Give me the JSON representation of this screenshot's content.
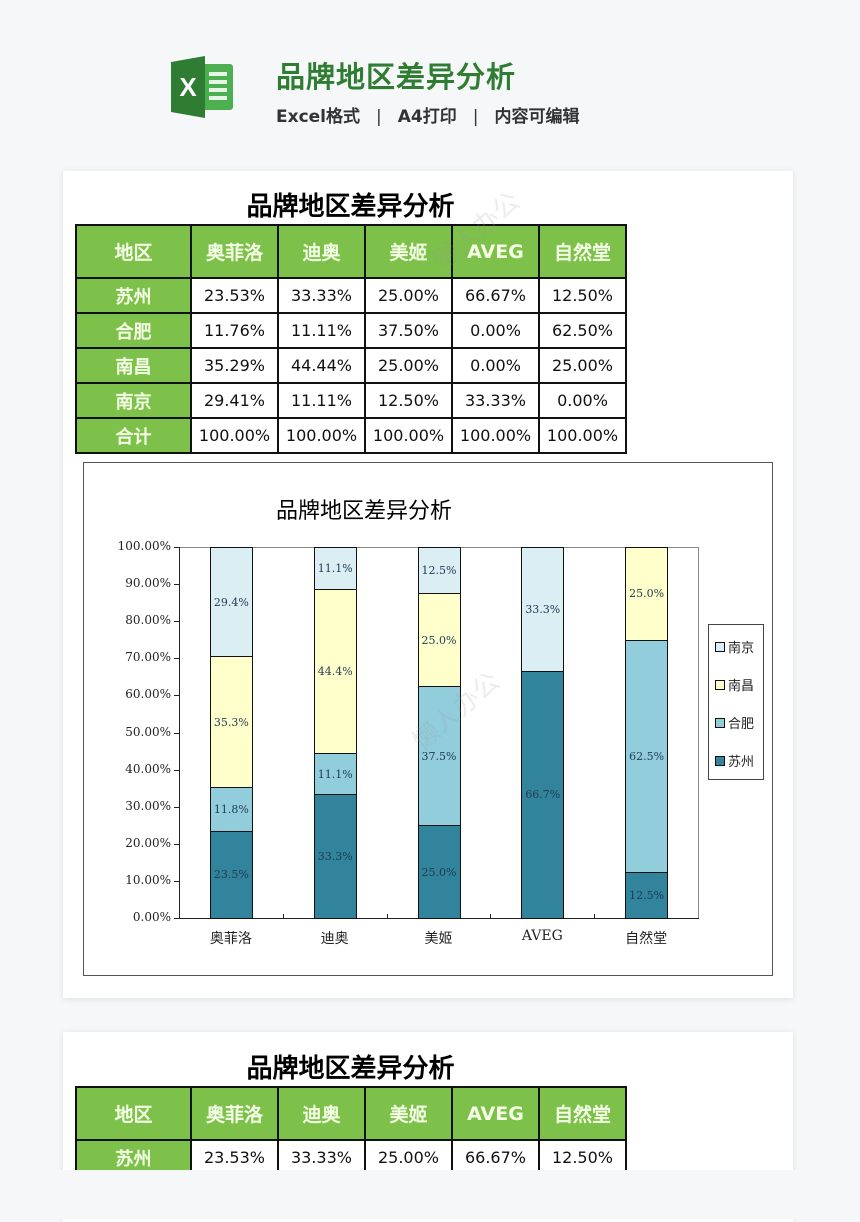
{
  "header": {
    "title": "品牌地区差异分析",
    "tags": [
      "Excel格式",
      "A4打印",
      "内容可编辑"
    ],
    "separator": "|",
    "icon": "excel-icon",
    "brand_color": "#2e7d32"
  },
  "sheet": {
    "title": "品牌地区差异分析",
    "columns": [
      "地区",
      "奥菲洛",
      "迪奥",
      "美姬",
      "AVEG",
      "自然堂"
    ],
    "rows": [
      {
        "region": "苏州",
        "values": [
          "23.53%",
          "33.33%",
          "25.00%",
          "66.67%",
          "12.50%"
        ]
      },
      {
        "region": "合肥",
        "values": [
          "11.76%",
          "11.11%",
          "37.50%",
          "0.00%",
          "62.50%"
        ]
      },
      {
        "region": "南昌",
        "values": [
          "35.29%",
          "44.44%",
          "25.00%",
          "0.00%",
          "25.00%"
        ]
      },
      {
        "region": "南京",
        "values": [
          "29.41%",
          "11.11%",
          "12.50%",
          "33.33%",
          "0.00%"
        ]
      },
      {
        "region": "合计",
        "values": [
          "100.00%",
          "100.00%",
          "100.00%",
          "100.00%",
          "100.00%"
        ]
      }
    ],
    "header_color": "#7dc14b"
  },
  "sheet2": {
    "title": "品牌地区差异分析",
    "columns": [
      "地区",
      "奥菲洛",
      "迪奥",
      "美姬",
      "AVEG",
      "自然堂"
    ],
    "rows": [
      {
        "region": "苏州",
        "values": [
          "23.53%",
          "33.33%",
          "25.00%",
          "66.67%",
          "12.50%"
        ]
      }
    ]
  },
  "watermark": "懒人办公",
  "chart_data": {
    "type": "bar",
    "stacked": true,
    "percent_stacked": true,
    "title": "品牌地区差异分析",
    "categories": [
      "奥菲洛",
      "迪奥",
      "美姬",
      "AVEG",
      "自然堂"
    ],
    "series": [
      {
        "name": "苏州",
        "color": "#31849b",
        "values": [
          23.5,
          33.3,
          25.0,
          66.7,
          12.5
        ],
        "labels": [
          "23.5%",
          "33.3%",
          "25.0%",
          "66.7%",
          "12.5%"
        ]
      },
      {
        "name": "合肥",
        "color": "#92cddc",
        "values": [
          11.8,
          11.1,
          37.5,
          0.0,
          62.5
        ],
        "labels": [
          "11.8%",
          "11.1%",
          "37.5%",
          "",
          "62.5%"
        ]
      },
      {
        "name": "南昌",
        "color": "#ffffcc",
        "values": [
          35.3,
          44.4,
          25.0,
          0.0,
          25.0
        ],
        "labels": [
          "35.3%",
          "44.4%",
          "25.0%",
          "",
          "25.0%"
        ]
      },
      {
        "name": "南京",
        "color": "#daeef3",
        "values": [
          29.4,
          11.1,
          12.5,
          33.3,
          0.0
        ],
        "labels": [
          "29.4%",
          "11.1%",
          "12.5%",
          "33.3%",
          ""
        ]
      }
    ],
    "yticks": [
      "0.00%",
      "10.00%",
      "20.00%",
      "30.00%",
      "40.00%",
      "50.00%",
      "60.00%",
      "70.00%",
      "80.00%",
      "90.00%",
      "100.00%"
    ],
    "ylim": [
      0,
      100
    ],
    "xlabel": "",
    "ylabel": "",
    "legend": [
      "南京",
      "南昌",
      "合肥",
      "苏州"
    ],
    "legend_position": "right",
    "grid": false
  }
}
